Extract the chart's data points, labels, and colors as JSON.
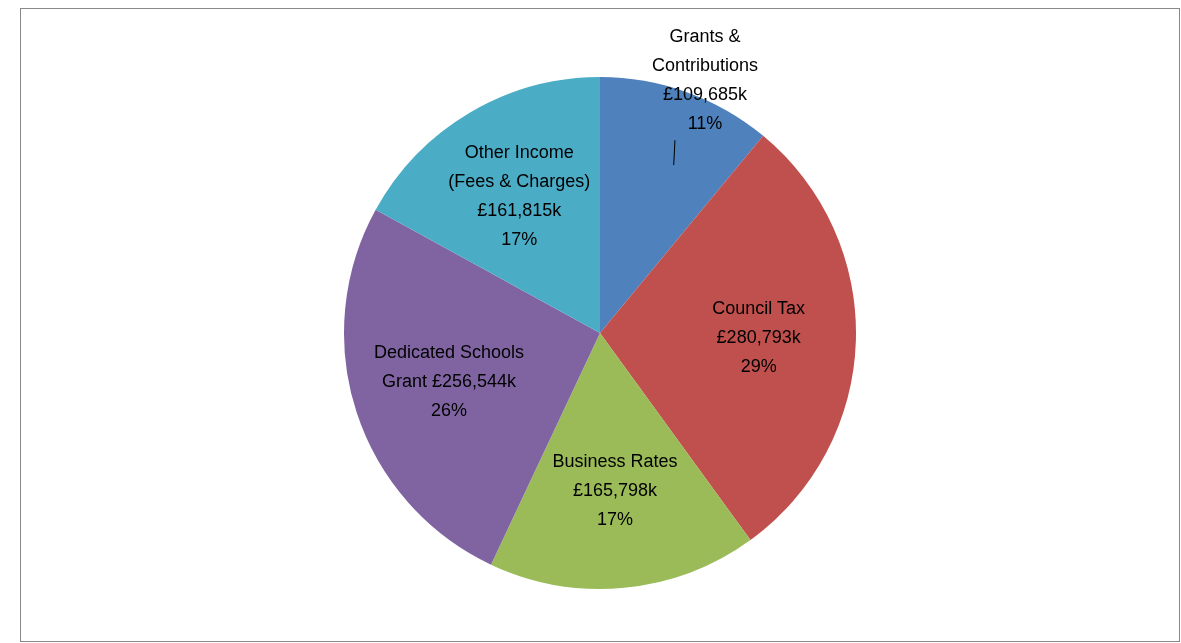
{
  "chart_data": {
    "type": "pie",
    "categories": [
      "Grants & Contributions £109,685k",
      "Council Tax £280,793k",
      "Business Rates £165,798k",
      "Dedicated Schools Grant £256,544k",
      "Other Income (Fees & Charges) £161,815k"
    ],
    "values": [
      11,
      29,
      17,
      26,
      17
    ],
    "colors": [
      "#4f81bd",
      "#c0504d",
      "#9bbb59",
      "#8064a2",
      "#4bacc6"
    ],
    "value_labels": [
      "11%",
      "29%",
      "17%",
      "26%",
      "17%"
    ],
    "legend": false
  }
}
